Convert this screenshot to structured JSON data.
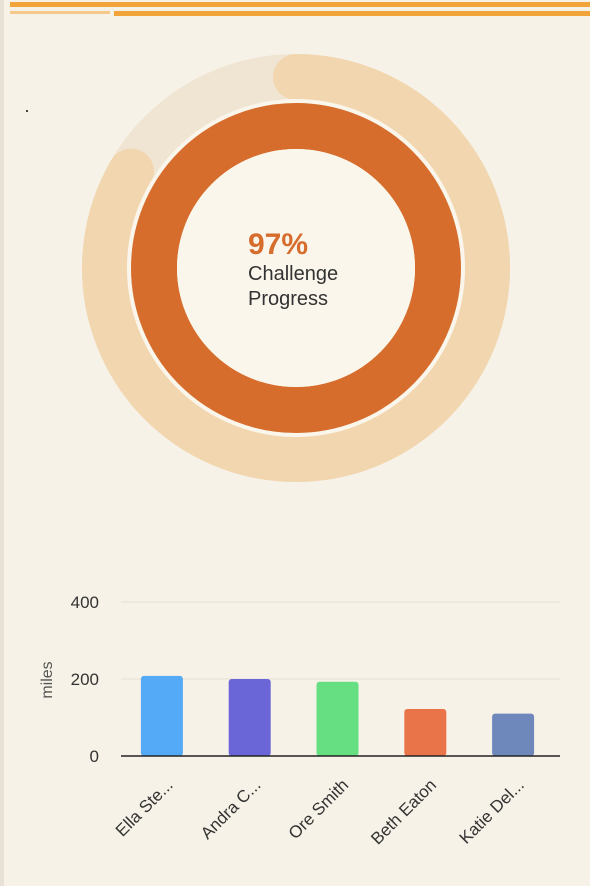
{
  "progress": {
    "value_percent": 97,
    "label": "97%",
    "caption_line1": "Challenge",
    "caption_line2": "Progress",
    "colors": {
      "inner_ring": "#d66d2c",
      "outer_ring": "#f2d6b0",
      "track": "#f0e5d3"
    }
  },
  "chart_data": {
    "type": "bar",
    "categories": [
      "Ella Ste...",
      "Andra C...",
      "Ore Smith",
      "Beth Eaton",
      "Katie Del..."
    ],
    "values": [
      208,
      200,
      193,
      122,
      110
    ],
    "colors": [
      "#55aaf7",
      "#6b66d8",
      "#66df82",
      "#ea7449",
      "#6f88bb"
    ],
    "ylabel": "miles",
    "yticks": [
      0,
      200,
      400
    ],
    "ylim": [
      0,
      400
    ],
    "grid": true
  }
}
